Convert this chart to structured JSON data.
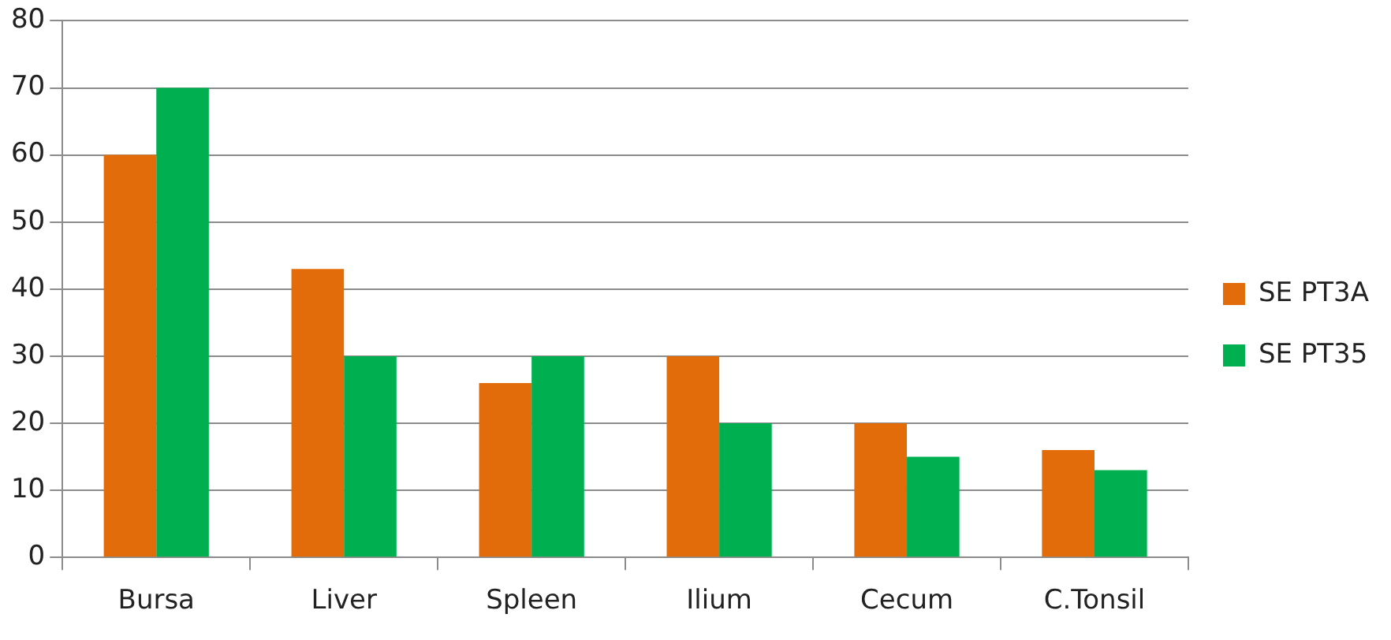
{
  "chart_data": {
    "type": "bar",
    "categories": [
      "Bursa",
      "Liver",
      "Spleen",
      "Ilium",
      "Cecum",
      "C.Tonsil"
    ],
    "series": [
      {
        "name": "SE PT3A",
        "color": "#e36c0a",
        "values": [
          60,
          43,
          26,
          30,
          20,
          16
        ]
      },
      {
        "name": "SE PT35",
        "color": "#00b050",
        "values": [
          70,
          30,
          30,
          20,
          15,
          13
        ]
      }
    ],
    "ylim": [
      0,
      80
    ],
    "yticks": [
      0,
      10,
      20,
      30,
      40,
      50,
      60,
      70,
      80
    ],
    "grid": "y",
    "legend": "right"
  }
}
